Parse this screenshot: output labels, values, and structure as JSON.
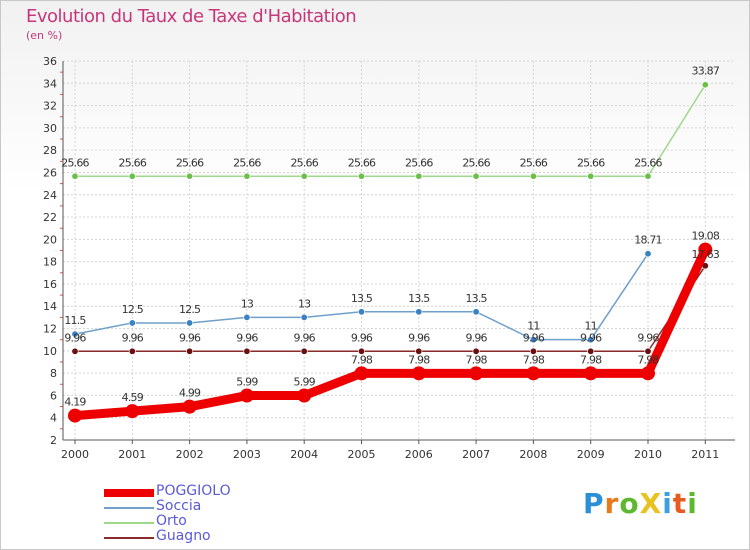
{
  "header": {
    "title": "Evolution du Taux de Taxe d'Habitation",
    "subtitle": "(en %)"
  },
  "logo": {
    "text": "ProXiti",
    "letters": [
      "P",
      "r",
      "o",
      "X",
      "i",
      "t",
      "i"
    ],
    "colors": [
      "#2a8fd6",
      "#e87a1e",
      "#5cb82d",
      "#e8c21e",
      "#3aa0e0",
      "#e85a1e",
      "#5cb82d"
    ]
  },
  "chart_data": {
    "type": "line",
    "title": "Evolution du Taux de Taxe d'Habitation",
    "ylabel": "(en %)",
    "categories": [
      "2000",
      "2001",
      "2002",
      "2003",
      "2004",
      "2005",
      "2006",
      "2007",
      "2008",
      "2009",
      "2010",
      "2011"
    ],
    "ylim": [
      2,
      36
    ],
    "yticks": [
      2,
      4,
      6,
      8,
      10,
      12,
      14,
      16,
      18,
      20,
      22,
      24,
      26,
      28,
      30,
      32,
      34,
      36
    ],
    "series": [
      {
        "name": "POGGIOLO",
        "color": "#ee0000",
        "point_color": "#ee0000",
        "values": [
          4.19,
          4.59,
          4.99,
          5.99,
          5.99,
          7.98,
          7.98,
          7.98,
          7.98,
          7.98,
          7.98,
          19.08
        ],
        "labels": [
          "4.19",
          "4.59",
          "4.99",
          "5.99",
          "5.99",
          "7.98",
          "7.98",
          "7.98",
          "7.98",
          "7.98",
          "7.98",
          "19.08"
        ]
      },
      {
        "name": "Soccia",
        "color": "#6fa0cc",
        "point_color": "#3b82c4",
        "values": [
          11.5,
          12.5,
          12.5,
          13,
          13,
          13.5,
          13.5,
          13.5,
          11,
          11,
          18.71,
          null
        ],
        "labels": [
          "11.5",
          "12.5",
          "12.5",
          "13",
          "13",
          "13.5",
          "13.5",
          "13.5",
          "11",
          "11",
          "18.71",
          ""
        ]
      },
      {
        "name": "Orto",
        "color": "#9ed88a",
        "point_color": "#6cc04a",
        "values": [
          25.66,
          25.66,
          25.66,
          25.66,
          25.66,
          25.66,
          25.66,
          25.66,
          25.66,
          25.66,
          25.66,
          33.87
        ],
        "labels": [
          "25.66",
          "25.66",
          "25.66",
          "25.66",
          "25.66",
          "25.66",
          "25.66",
          "25.66",
          "25.66",
          "25.66",
          "25.66",
          "33.87"
        ]
      },
      {
        "name": "Guagno",
        "color": "#8a2a2a",
        "point_color": "#6a1010",
        "values": [
          9.96,
          9.96,
          9.96,
          9.96,
          9.96,
          9.96,
          9.96,
          9.96,
          9.96,
          9.96,
          9.96,
          17.63
        ],
        "labels": [
          "9.96",
          "9.96",
          "9.96",
          "9.96",
          "9.96",
          "9.96",
          "9.96",
          "9.96",
          "9.96",
          "9.96",
          "9.96",
          "17.63"
        ]
      }
    ],
    "legend": [
      "POGGIOLO",
      "Soccia",
      "Orto",
      "Guagno"
    ],
    "grid": true
  }
}
